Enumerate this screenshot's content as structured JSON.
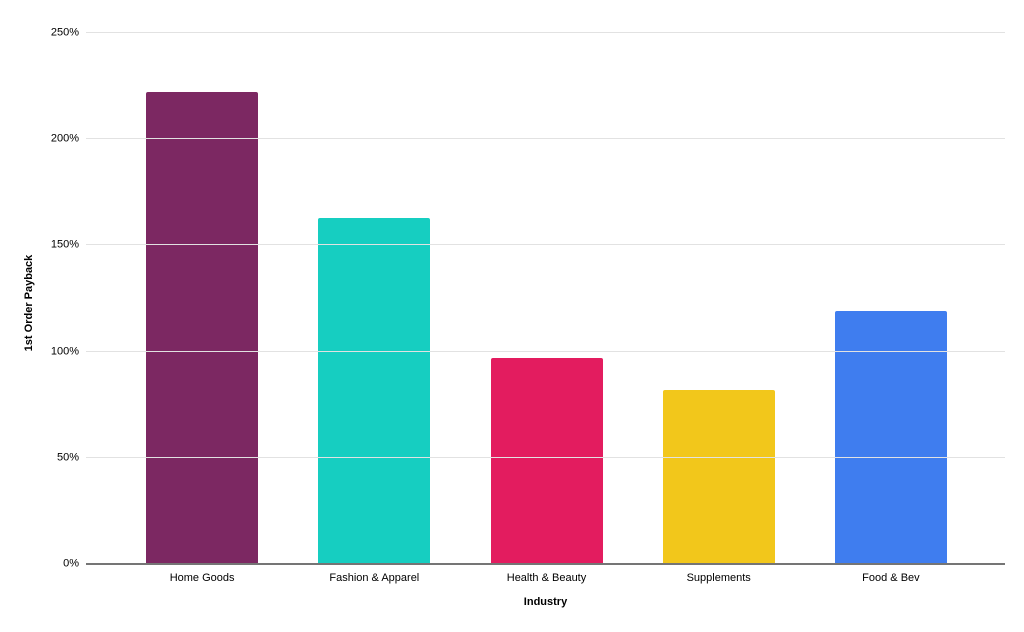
{
  "chart_data": {
    "type": "bar",
    "title": "",
    "xlabel": "Industry",
    "ylabel": "1st Order Payback",
    "categories": [
      "Home Goods",
      "Fashion & Apparel",
      "Health & Beauty",
      "Supplements",
      "Food & Bev"
    ],
    "values": [
      222,
      163,
      97,
      82,
      119
    ],
    "unit": "%",
    "ylim": [
      0,
      250
    ],
    "yticks": [
      0,
      50,
      100,
      150,
      200,
      250
    ],
    "ytick_labels": [
      "0%",
      "50%",
      "100%",
      "150%",
      "200%",
      "250%"
    ],
    "bar_colors": [
      "#7C2862",
      "#16CEC1",
      "#E31C5F",
      "#F2C71B",
      "#3F7DEF"
    ],
    "grid": true,
    "legend": false
  },
  "colors": {
    "background": "#ffffff",
    "gridline": "#e2e2e2",
    "axis_line": "#757575",
    "text": "#000000"
  }
}
